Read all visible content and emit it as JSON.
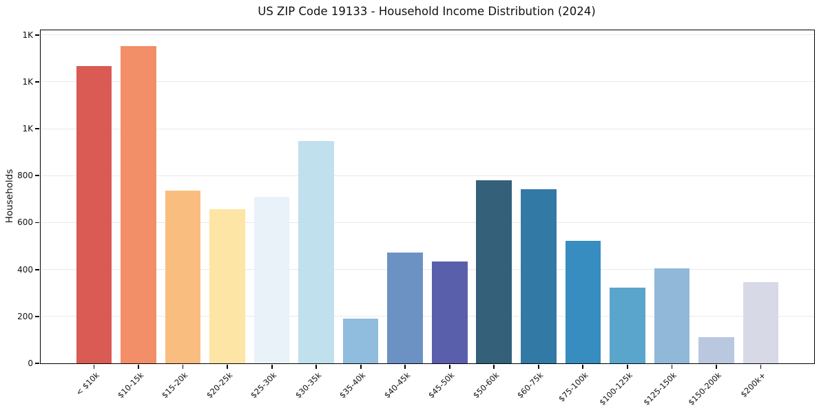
{
  "title": "US ZIP Code 19133 - Household Income Distribution (2024)",
  "chart_data": {
    "type": "bar",
    "title": "US ZIP Code 19133 - Household Income Distribution (2024)",
    "xlabel": "",
    "ylabel": "Households",
    "ylim": [
      0,
      1420
    ],
    "grid": "horizontal",
    "legend": "none",
    "categories": [
      "< $10k",
      "$10-15k",
      "$15-20k",
      "$20-25k",
      "$25-30k",
      "$30-35k",
      "$35-40k",
      "$40-45k",
      "$45-50k",
      "$50-60k",
      "$60-75k",
      "$75-100k",
      "$100-125k",
      "$125-150k",
      "$150-200k",
      "$200k+"
    ],
    "values": [
      1268,
      1352,
      736,
      658,
      710,
      948,
      190,
      473,
      434,
      780,
      743,
      523,
      324,
      404,
      111,
      345
    ],
    "bar_colors": [
      "#d95b53",
      "#f28e68",
      "#fabd80",
      "#fde5a5",
      "#e9f2f8",
      "#bfe0ec",
      "#90bcdd",
      "#6c92c4",
      "#5a5fab",
      "#34607a",
      "#3379a5",
      "#378cc0",
      "#5aa5cb",
      "#91b8d8",
      "#b9c8de",
      "#d7d9e7"
    ],
    "yticks": {
      "values": [
        0,
        200,
        400,
        600,
        800,
        1000,
        1200,
        1400
      ],
      "labels": [
        "0",
        "200",
        "400",
        "600",
        "800",
        "1K",
        "1K",
        "1K"
      ]
    }
  },
  "colors": {
    "background": "#ffffff",
    "grid": "#e9e9e9",
    "axis": "#000000",
    "text": "#111111"
  }
}
